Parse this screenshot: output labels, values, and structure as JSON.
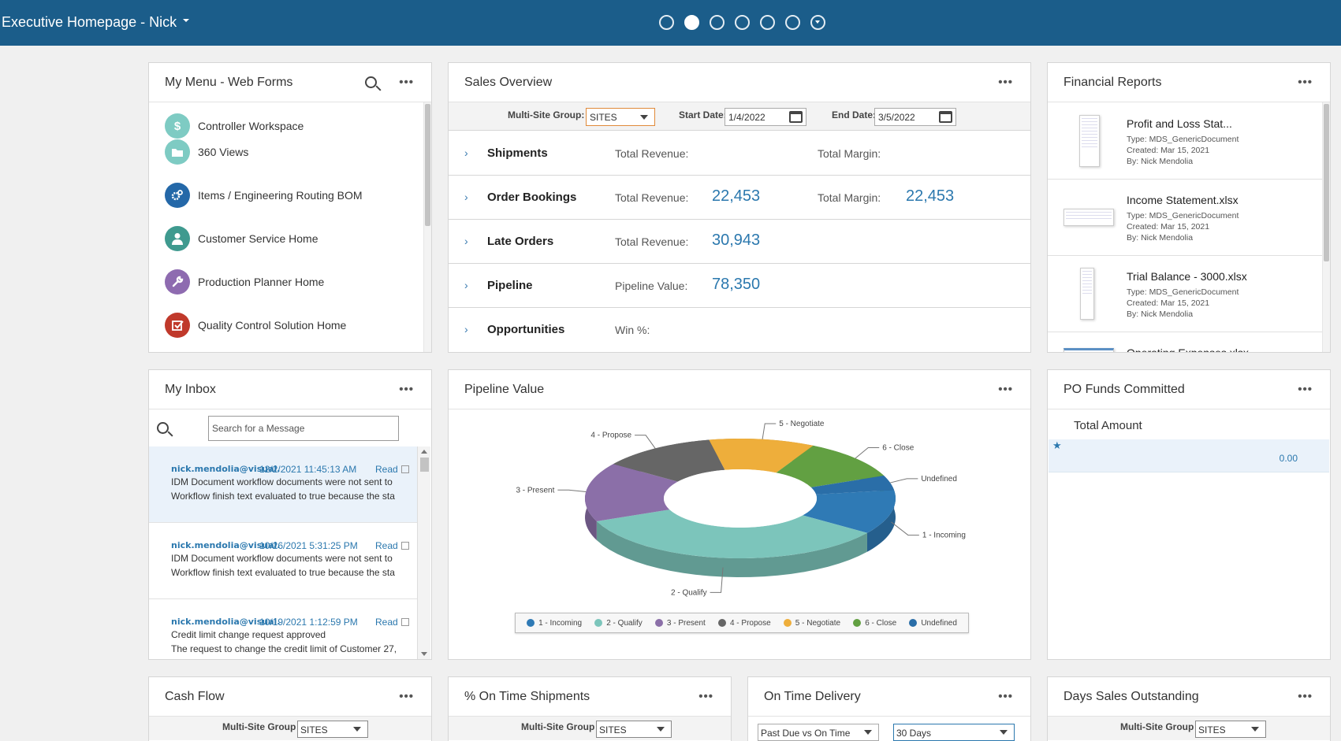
{
  "header": {
    "title": "Executive Homepage - Nick",
    "pages": 7,
    "active_page": 2
  },
  "my_menu": {
    "title": "My Menu - Web Forms",
    "items": [
      {
        "label": "Controller Workspace",
        "icon": "dollar-icon",
        "color": "#7ecbc3"
      },
      {
        "label": "360 Views",
        "icon": "folder-icon",
        "color": "#7ecbc3"
      },
      {
        "label": "Items / Engineering Routing BOM",
        "icon": "gears-icon",
        "color": "#2468a8"
      },
      {
        "label": "Customer Service Home",
        "icon": "person-icon",
        "color": "#3f9a8f"
      },
      {
        "label": "Production Planner Home",
        "icon": "wrench-icon",
        "color": "#8e6bb0"
      },
      {
        "label": "Quality Control Solution Home",
        "icon": "checkbox-icon",
        "color": "#c0392b"
      }
    ]
  },
  "sales_overview": {
    "title": "Sales Overview",
    "group_label": "Multi-Site Group:",
    "group_value": "SITES",
    "start_label": "Start Date:",
    "start_value": "1/4/2022",
    "end_label": "End Date:",
    "end_value": "3/5/2022",
    "rows": [
      {
        "name": "Shipments",
        "l1": "Total Revenue:",
        "v1": "",
        "l2": "Total Margin:",
        "v2": ""
      },
      {
        "name": "Order Bookings",
        "l1": "Total Revenue:",
        "v1": "22,453",
        "l2": "Total Margin:",
        "v2": "22,453"
      },
      {
        "name": "Late Orders",
        "l1": "Total Revenue:",
        "v1": "30,943",
        "l2": "",
        "v2": ""
      },
      {
        "name": "Pipeline",
        "l1": "Pipeline Value:",
        "v1": "78,350",
        "l2": "",
        "v2": ""
      },
      {
        "name": "Opportunities",
        "l1": "Win %:",
        "v1": "",
        "l2": "",
        "v2": ""
      }
    ]
  },
  "financial_reports": {
    "title": "Financial Reports",
    "items": [
      {
        "title": "Profit and Loss Stat...",
        "type": "Type: MDS_GenericDocument",
        "created": "Created: Mar 15, 2021",
        "by": "By: Nick Mendolia"
      },
      {
        "title": "Income Statement.xlsx",
        "type": "Type: MDS_GenericDocument",
        "created": "Created: Mar 15, 2021",
        "by": "By: Nick Mendolia"
      },
      {
        "title": "Trial Balance - 3000.xlsx",
        "type": "Type: MDS_GenericDocument",
        "created": "Created: Mar 15, 2021",
        "by": "By: Nick Mendolia"
      },
      {
        "title": "Operating Expenses.xlsx",
        "type": "",
        "created": "",
        "by": ""
      }
    ]
  },
  "inbox": {
    "title": "My Inbox",
    "search_placeholder": "Search for a Message",
    "messages": [
      {
        "from": "nick.mendolia@visual.",
        "date": "12/2/2021 11:45:13 AM",
        "read": "Read",
        "l1": "IDM Document workflow documents were not sent to",
        "l2": "Workflow finish text evaluated to true because the sta"
      },
      {
        "from": "nick.mendolia@visual.",
        "date": "10/26/2021 5:31:25 PM",
        "read": "Read",
        "l1": "IDM Document workflow documents were not sent to",
        "l2": "Workflow finish text evaluated to true because the sta"
      },
      {
        "from": "nick.mendolia@visual.",
        "date": "10/19/2021 1:12:59 PM",
        "read": "Read",
        "l1": "Credit limit change request approved",
        "l2": "The request to change the credit limit of Customer 27,"
      }
    ]
  },
  "pipeline_value": {
    "title": "Pipeline Value"
  },
  "chart_data": {
    "type": "pie",
    "variant": "donut-3d",
    "categories": [
      "1 - Incoming",
      "2 - Qualify",
      "3 - Present",
      "4 - Propose",
      "5 - Negotiate",
      "6 - Close",
      "Undefined"
    ],
    "values": [
      12,
      34,
      16,
      12,
      11,
      11,
      4
    ],
    "colors": [
      "#2f7ab5",
      "#7cc5bb",
      "#8b6fa8",
      "#666666",
      "#eeae3b",
      "#62a042",
      "#2a6ea8"
    ],
    "legend": "bottom"
  },
  "po_funds": {
    "title": "PO Funds Committed",
    "column": "Total Amount",
    "value": "0.00"
  },
  "cash_flow": {
    "title": "Cash Flow",
    "group_label": "Multi-Site Group",
    "group_value": "SITES"
  },
  "on_time_shipments": {
    "title": "% On Time Shipments",
    "group_label": "Multi-Site Group",
    "group_value": "SITES"
  },
  "on_time_delivery": {
    "title": "On Time Delivery",
    "sel1": "Past Due vs On Time",
    "sel2": "30 Days"
  },
  "dso": {
    "title": "Days Sales Outstanding",
    "group_label": "Multi-Site Group",
    "group_value": "SITES"
  }
}
